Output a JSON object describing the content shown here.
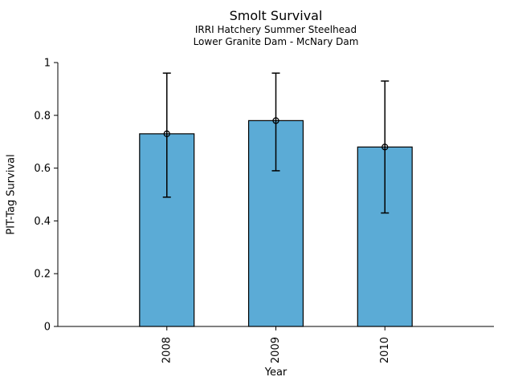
{
  "chart_data": {
    "type": "bar",
    "title": "Smolt Survival",
    "subtitle1": "IRRI Hatchery Summer Steelhead",
    "subtitle2": "Lower Granite Dam - McNary Dam",
    "xlabel": "Year",
    "ylabel": "PIT-Tag Survival",
    "categories": [
      "2008",
      "2009",
      "2010"
    ],
    "values": [
      0.73,
      0.78,
      0.68
    ],
    "error_high": [
      0.96,
      0.96,
      0.93
    ],
    "error_low": [
      0.49,
      0.59,
      0.43
    ],
    "ylim": [
      0,
      1
    ],
    "xlim": [
      0,
      4
    ],
    "yticks": [
      0,
      0.2,
      0.4,
      0.6,
      0.8,
      1
    ],
    "ytick_labels": [
      "0",
      "0.2",
      "0.4",
      "0.6",
      "0.8",
      "1"
    ],
    "xtick_label_rotation_deg": 90,
    "grid": false,
    "legend": null,
    "marker": "open-circle",
    "bar_color": "#5BABD6",
    "bar_edge_color": "#000000",
    "error_color": "#000000",
    "axis_color": "#000000",
    "background": "#ffffff"
  }
}
